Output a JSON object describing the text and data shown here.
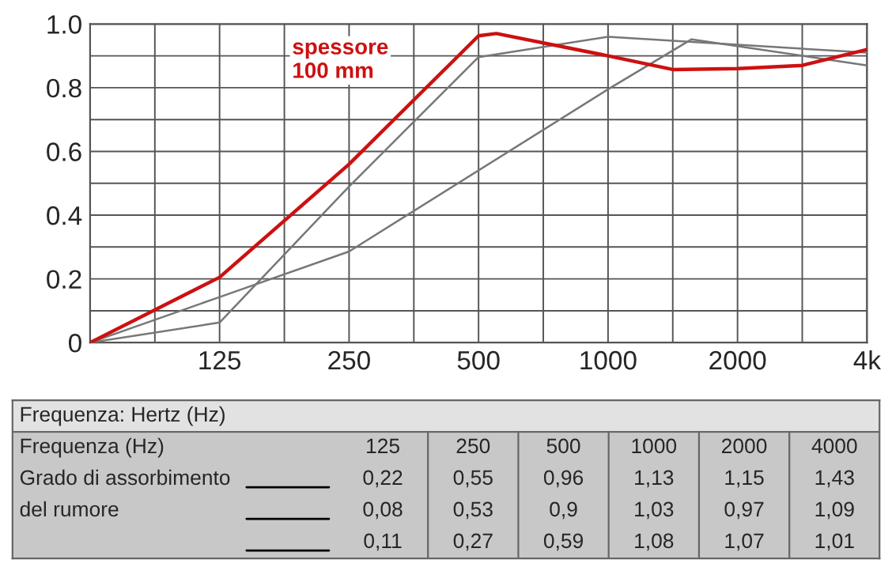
{
  "chart_data": {
    "type": "line",
    "log": "x",
    "xlim": [
      62.5,
      4000
    ],
    "ylim": [
      0,
      1.0
    ],
    "xticks": [
      {
        "value": 62.5,
        "label": null
      },
      {
        "value": 88.4,
        "label": null
      },
      125,
      {
        "value": 176.8,
        "label": null
      },
      250,
      {
        "value": 353.6,
        "label": null
      },
      500,
      {
        "value": 707.1,
        "label": null
      },
      1000,
      {
        "value": 1414,
        "label": null
      },
      2000,
      {
        "value": 2828,
        "label": null
      },
      {
        "value": 4000,
        "label": "4k"
      }
    ],
    "yticks": [
      0,
      {
        "value": 0.1,
        "label": null
      },
      0.2,
      {
        "value": 0.3,
        "label": null
      },
      0.4,
      {
        "value": 0.5,
        "label": null
      },
      0.6,
      {
        "value": 0.7,
        "label": null
      },
      0.8,
      {
        "value": 0.9,
        "label": null
      },
      {
        "value": 1.0,
        "label": "1.0"
      }
    ],
    "grid": true,
    "legend": false,
    "marker": "none",
    "line_style": "solid",
    "series": [
      {
        "name": "spessore\n100 mm",
        "color": "#cc1111",
        "x": [
          62.5,
          125,
          250,
          500,
          550,
          1000,
          1414,
          2000,
          2828,
          4000
        ],
        "values": [
          0,
          0.205,
          0.56,
          0.963,
          0.97,
          0.9,
          0.857,
          0.86,
          0.87,
          0.92
        ]
      },
      {
        "color": "#777777",
        "x": [
          62.5,
          125,
          250,
          500,
          1000,
          4000
        ],
        "values": [
          0,
          0.063,
          0.49,
          0.896,
          0.96,
          0.91
        ]
      },
      {
        "color": "#777777",
        "x": [
          62.5,
          125,
          250,
          1000,
          1564,
          4000
        ],
        "values": [
          0,
          0.143,
          0.286,
          0.795,
          0.952,
          0.87
        ]
      }
    ],
    "annotations": [
      "Frequenza: Hertz (Hz)",
      "Frequenza (Hz)",
      "Grado di assorbimento",
      "del rumore",
      "125",
      "250",
      "500",
      "1000",
      "2000",
      "4000",
      "0,22",
      "0,55",
      "0,96",
      "1,13",
      "1,15",
      "1,43",
      "0,08",
      "0,53",
      "0,9",
      "1,03",
      "0,97",
      "1,09",
      "0,11",
      "0,27",
      "0,59",
      "1,08",
      "1,07",
      "1,01"
    ]
  }
}
